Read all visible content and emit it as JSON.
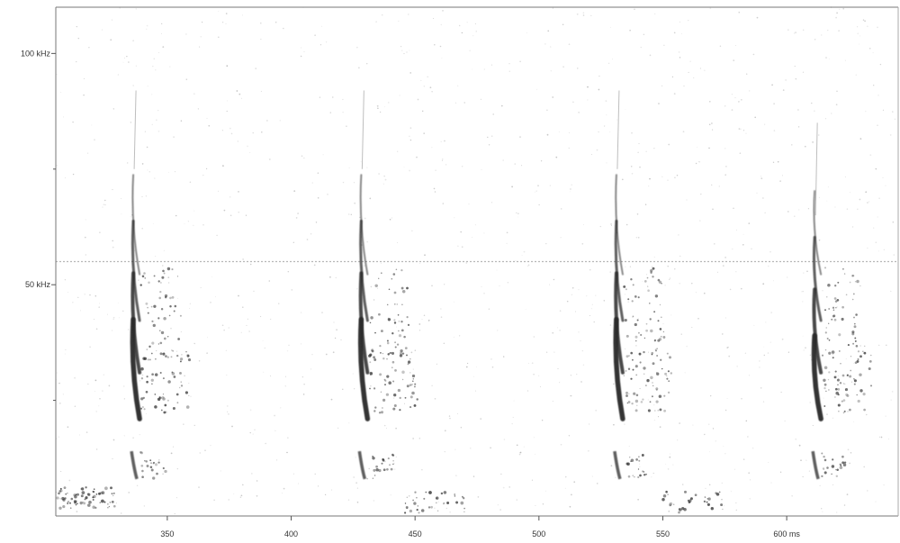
{
  "chart_data": {
    "type": "spectrogram",
    "title": "",
    "xlabel": "",
    "ylabel": "",
    "x_unit": "ms",
    "y_unit": "kHz",
    "xlim": [
      305,
      645
    ],
    "ylim": [
      0,
      110
    ],
    "x_ticks": [
      {
        "value": 350,
        "label": "350"
      },
      {
        "value": 400,
        "label": "400"
      },
      {
        "value": 450,
        "label": "450"
      },
      {
        "value": 500,
        "label": "500"
      },
      {
        "value": 550,
        "label": "550"
      },
      {
        "value": 600,
        "label": "600 ms"
      }
    ],
    "y_ticks": [
      {
        "value": 100,
        "label": "100 kHz"
      },
      {
        "value": 50,
        "label": "50 kHz"
      }
    ],
    "y_minor_ticks": [
      25,
      75
    ],
    "noise_band_khz": 55,
    "calls": [
      {
        "t_ms": 337,
        "f_start_khz": 75,
        "f_end_khz": 25
      },
      {
        "t_ms": 429,
        "f_start_khz": 75,
        "f_end_khz": 25
      },
      {
        "t_ms": 532,
        "f_start_khz": 75,
        "f_end_khz": 25
      },
      {
        "t_ms": 612,
        "f_start_khz": 65,
        "f_end_khz": 25
      }
    ],
    "colors": {
      "ink": "#2a2a2a",
      "axis": "#555555",
      "background": "#ffffff"
    }
  }
}
